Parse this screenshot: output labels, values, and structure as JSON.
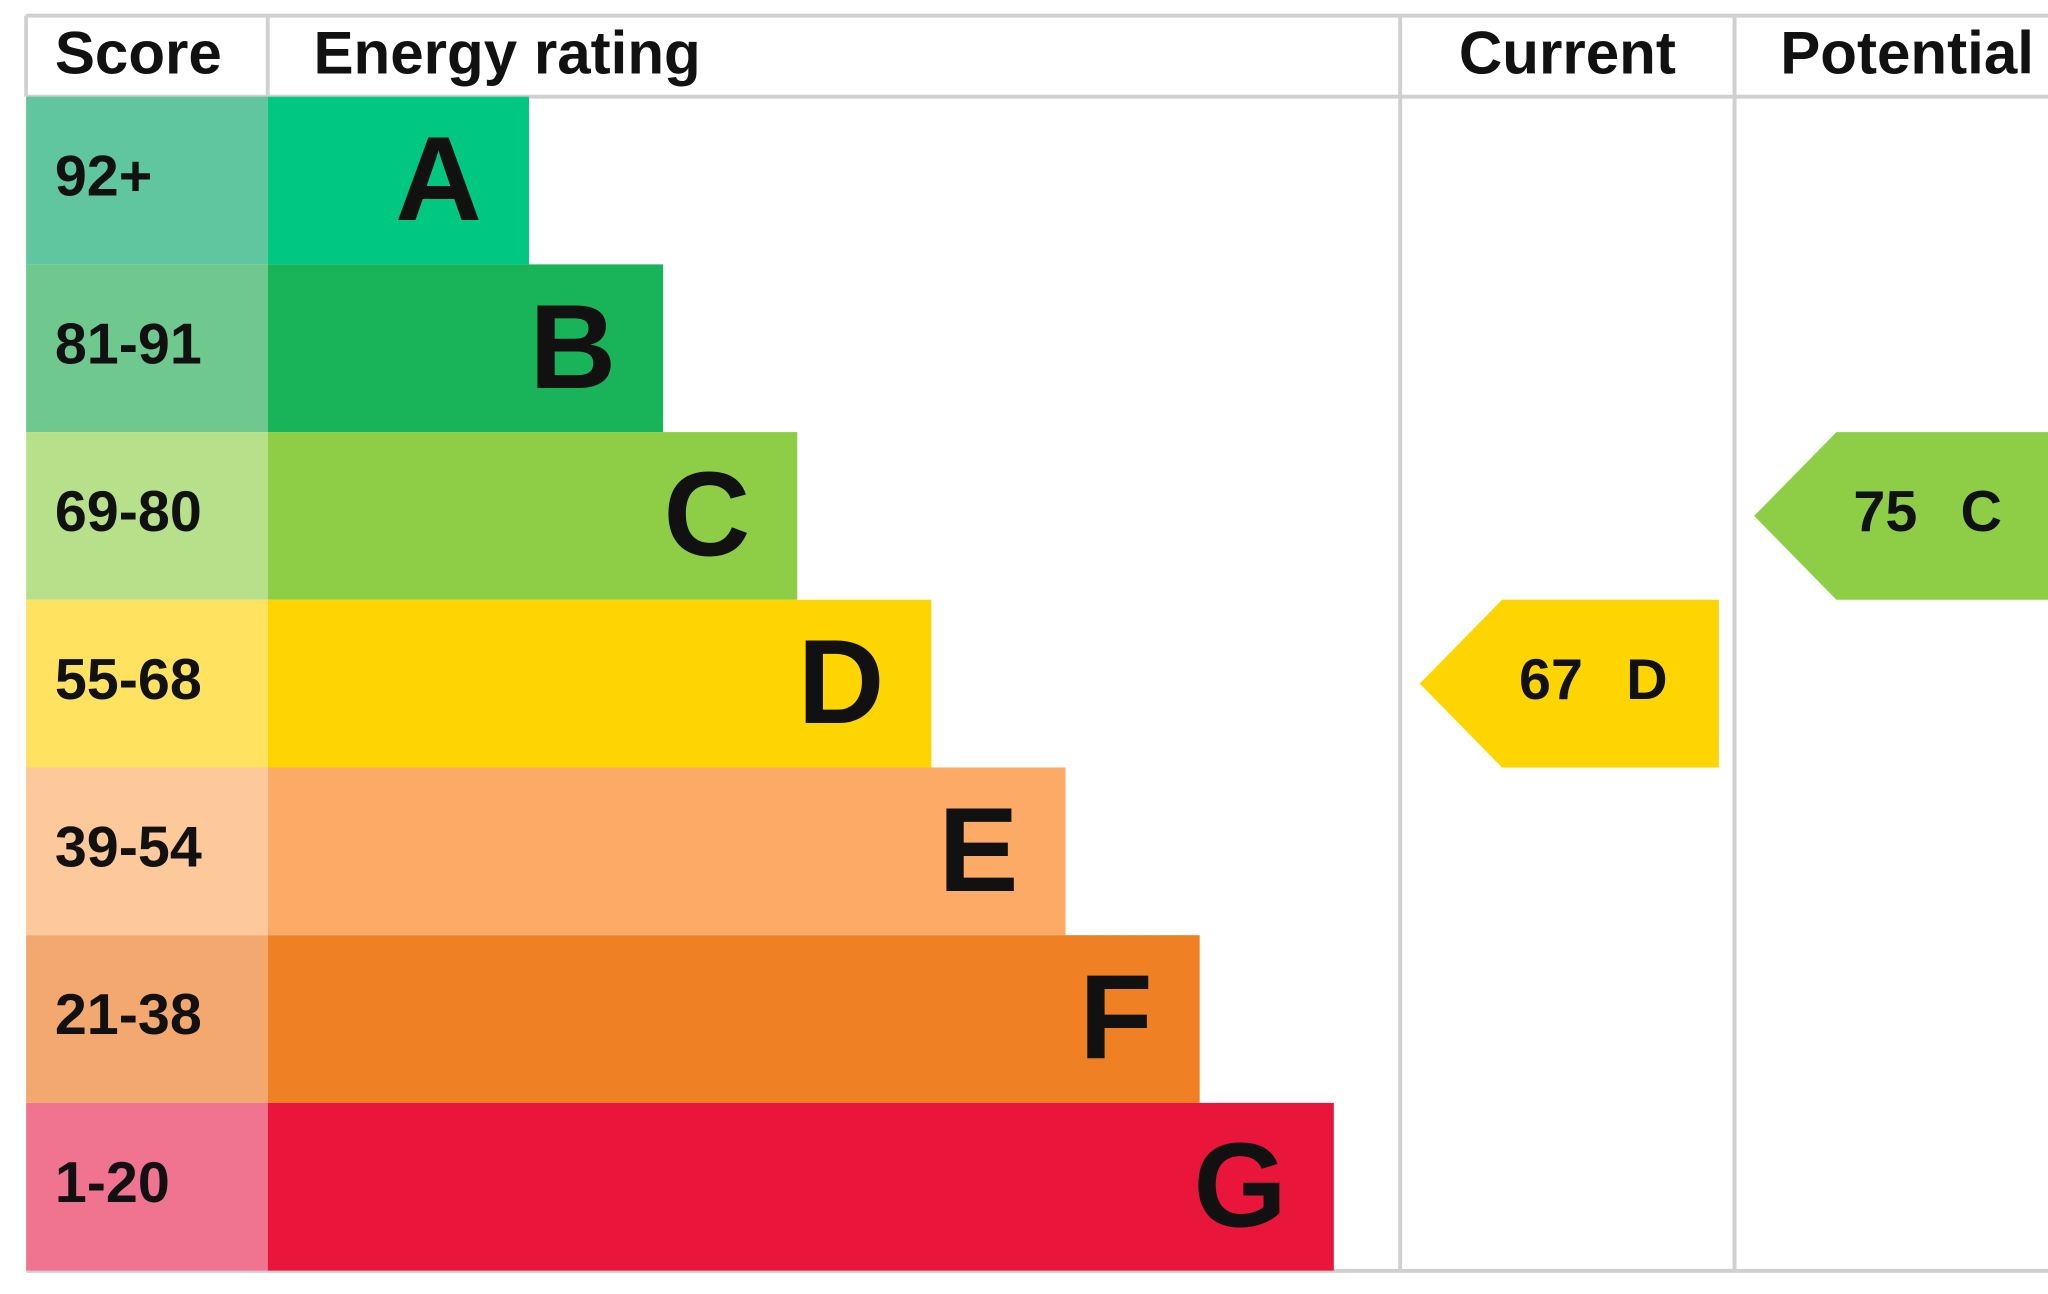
{
  "header": {
    "score": "Score",
    "rating": "Energy rating",
    "current": "Current",
    "potential": "Potential"
  },
  "bands": [
    {
      "score": "92+",
      "letter": "A",
      "color": "#00c781",
      "score_color": "#5fc6a0"
    },
    {
      "score": "81-91",
      "letter": "B",
      "color": "#19b459",
      "score_color": "#6fc98f"
    },
    {
      "score": "69-80",
      "letter": "C",
      "color": "#8dce46",
      "score_color": "#b7e08b"
    },
    {
      "score": "55-68",
      "letter": "D",
      "color": "#ffd500",
      "score_color": "#ffe360"
    },
    {
      "score": "39-54",
      "letter": "E",
      "color": "#fcaa65",
      "score_color": "#fdc89a"
    },
    {
      "score": "21-38",
      "letter": "F",
      "color": "#ef8023",
      "score_color": "#f2a86f"
    },
    {
      "score": "1-20",
      "letter": "G",
      "color": "#e9153b",
      "score_color": "#f07390"
    }
  ],
  "current": {
    "value": 67,
    "band": "D"
  },
  "potential": {
    "value": 75,
    "band": "C"
  }
}
